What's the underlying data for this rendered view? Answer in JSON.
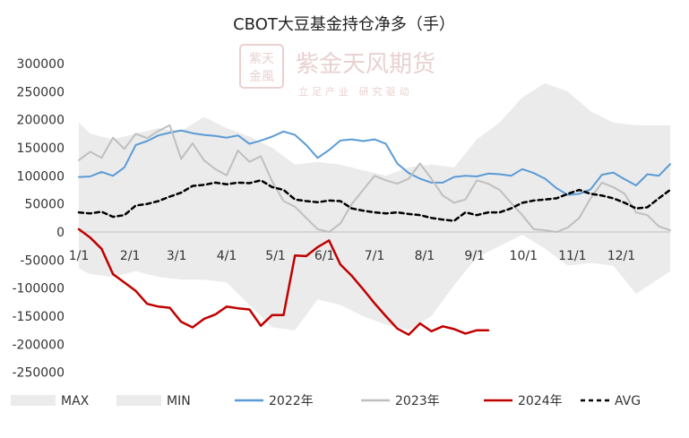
{
  "chart_data": {
    "type": "line",
    "title": "CBOT大豆基金持仓净多（手）",
    "xlabel": "",
    "ylabel": "",
    "ylim": [
      -300000,
      300000
    ],
    "yticks": [
      -250000,
      -200000,
      -150000,
      -100000,
      -50000,
      0,
      50000,
      100000,
      150000,
      200000,
      250000,
      300000
    ],
    "yticklabels": [
      "-250000",
      "-200000",
      "-150000",
      "-100000",
      "-50000",
      "0",
      "50000",
      "100000",
      "150000",
      "200000",
      "250000",
      "300000"
    ],
    "xlim": [
      1,
      53
    ],
    "xticks": [
      1,
      5.5,
      9.6,
      14,
      18.3,
      22.6,
      27,
      31.4,
      35.8,
      40.1,
      44.4,
      48.7
    ],
    "xticklabels": [
      "1/1",
      "2/1",
      "3/1",
      "4/1",
      "5/1",
      "6/1",
      "7/1",
      "8/1",
      "9/1",
      "10/1",
      "11/1",
      "12/1"
    ],
    "grid": false,
    "legend_position": "bottom",
    "band": {
      "max_name": "MAX",
      "min_name": "MIN",
      "color": "#ebebeb",
      "x": [
        1,
        2,
        4,
        6,
        8,
        10,
        12,
        14,
        16,
        18,
        20,
        22,
        24,
        26,
        28,
        30,
        32,
        34,
        36,
        38,
        40,
        42,
        44,
        46,
        48,
        50,
        53
      ],
      "max": [
        195000,
        175000,
        165000,
        175000,
        185000,
        180000,
        205000,
        185000,
        170000,
        150000,
        120000,
        125000,
        120000,
        110000,
        100000,
        115000,
        120000,
        115000,
        165000,
        195000,
        240000,
        265000,
        250000,
        215000,
        195000,
        190000,
        190000
      ],
      "min": [
        -65000,
        -75000,
        -80000,
        -70000,
        -80000,
        -85000,
        -85000,
        -90000,
        -130000,
        -170000,
        -175000,
        -120000,
        -130000,
        -150000,
        -165000,
        -175000,
        -150000,
        -95000,
        -45000,
        -25000,
        -5000,
        -30000,
        -60000,
        -55000,
        -60000,
        -110000,
        -70000
      ]
    },
    "series": [
      {
        "name": "2022年",
        "color": "#5b9bd5",
        "dash": "",
        "width": 2,
        "x": [
          1,
          2,
          3,
          4,
          5,
          6,
          7,
          8,
          9,
          10,
          11,
          12,
          13,
          14,
          15,
          16,
          17,
          18,
          19,
          20,
          21,
          22,
          23,
          24,
          25,
          26,
          27,
          28,
          29,
          30,
          31,
          32,
          33,
          34,
          35,
          36,
          37,
          38,
          39,
          40,
          41,
          42,
          43,
          44,
          45,
          46,
          47,
          48,
          49,
          50,
          51,
          52,
          53
        ],
        "values": [
          98000,
          99000,
          107000,
          100000,
          115000,
          155000,
          162000,
          172000,
          177000,
          181000,
          176000,
          173000,
          171000,
          168000,
          172000,
          157000,
          163000,
          170000,
          179000,
          173000,
          155000,
          132000,
          146000,
          163000,
          165000,
          162000,
          165000,
          157000,
          122000,
          105000,
          95000,
          88000,
          88000,
          98000,
          100000,
          99000,
          104000,
          103000,
          100000,
          112000,
          105000,
          95000,
          78000,
          66000,
          68000,
          76000,
          102000,
          106000,
          94000,
          83000,
          103000,
          100000,
          121000
        ]
      },
      {
        "name": "2023年",
        "color": "#bfbfbf",
        "dash": "",
        "width": 2,
        "x": [
          1,
          2,
          3,
          4,
          5,
          6,
          7,
          8,
          9,
          10,
          11,
          12,
          13,
          14,
          15,
          16,
          17,
          18,
          19,
          20,
          21,
          22,
          23,
          24,
          25,
          26,
          27,
          28,
          29,
          30,
          31,
          32,
          33,
          34,
          35,
          36,
          37,
          38,
          39,
          40,
          41,
          42,
          43,
          44,
          45,
          46,
          47,
          48,
          49,
          50,
          51,
          52,
          53
        ],
        "values": [
          128000,
          143000,
          132000,
          168000,
          148000,
          175000,
          167000,
          180000,
          190000,
          130000,
          158000,
          128000,
          112000,
          101000,
          145000,
          125000,
          135000,
          90000,
          55000,
          45000,
          25000,
          5000,
          0,
          15000,
          50000,
          75000,
          100000,
          92000,
          86000,
          95000,
          122000,
          95000,
          65000,
          52000,
          58000,
          92000,
          86000,
          75000,
          52000,
          30000,
          5000,
          3000,
          0,
          8000,
          25000,
          60000,
          88000,
          80000,
          68000,
          35000,
          30000,
          10000,
          3000
        ]
      },
      {
        "name": "2024年",
        "color": "#c00000",
        "dash": "",
        "width": 2.5,
        "x": [
          1,
          2,
          3,
          4,
          5,
          6,
          7,
          8,
          9,
          10,
          11,
          12,
          13,
          14,
          15,
          16,
          17,
          18,
          19,
          20,
          21,
          22,
          23,
          24,
          25,
          26,
          27,
          28,
          29,
          30,
          31,
          32,
          33,
          34,
          35,
          36,
          37
        ],
        "values": [
          5000,
          -10000,
          -30000,
          -75000,
          -90000,
          -105000,
          -128000,
          -133000,
          -135000,
          -160000,
          -170000,
          -155000,
          -147000,
          -133000,
          -136000,
          -138000,
          -167000,
          -148000,
          -148000,
          -42000,
          -43000,
          -27000,
          -15000,
          -58000,
          -78000,
          -102000,
          -127000,
          -150000,
          -172000,
          -183000,
          -163000,
          -177000,
          -168000,
          -173000,
          -181000,
          -175000,
          -175000
        ]
      },
      {
        "name": "AVG",
        "color": "#000000",
        "dash": "5,4",
        "width": 2.5,
        "x": [
          1,
          2,
          3,
          4,
          5,
          6,
          7,
          8,
          9,
          10,
          11,
          12,
          13,
          14,
          15,
          16,
          17,
          18,
          19,
          20,
          21,
          22,
          23,
          24,
          25,
          26,
          27,
          28,
          29,
          30,
          31,
          32,
          33,
          34,
          35,
          36,
          37,
          38,
          39,
          40,
          41,
          42,
          43,
          44,
          45,
          46,
          47,
          48,
          49,
          50,
          51,
          52,
          53
        ],
        "values": [
          35000,
          33000,
          36000,
          27000,
          30000,
          47000,
          50000,
          55000,
          63000,
          70000,
          82000,
          84000,
          88000,
          85000,
          88000,
          87000,
          92000,
          80000,
          75000,
          58000,
          55000,
          53000,
          56000,
          55000,
          42000,
          38000,
          35000,
          33000,
          35000,
          32000,
          30000,
          25000,
          22000,
          20000,
          35000,
          30000,
          35000,
          35000,
          42000,
          52000,
          56000,
          58000,
          60000,
          68000,
          75000,
          68000,
          65000,
          60000,
          52000,
          42000,
          44000,
          60000,
          75000
        ]
      }
    ]
  },
  "watermark": {
    "seal_text": "紫金天风",
    "brand": "紫金天风期货",
    "slogan": "立足产业 研究驱动"
  }
}
